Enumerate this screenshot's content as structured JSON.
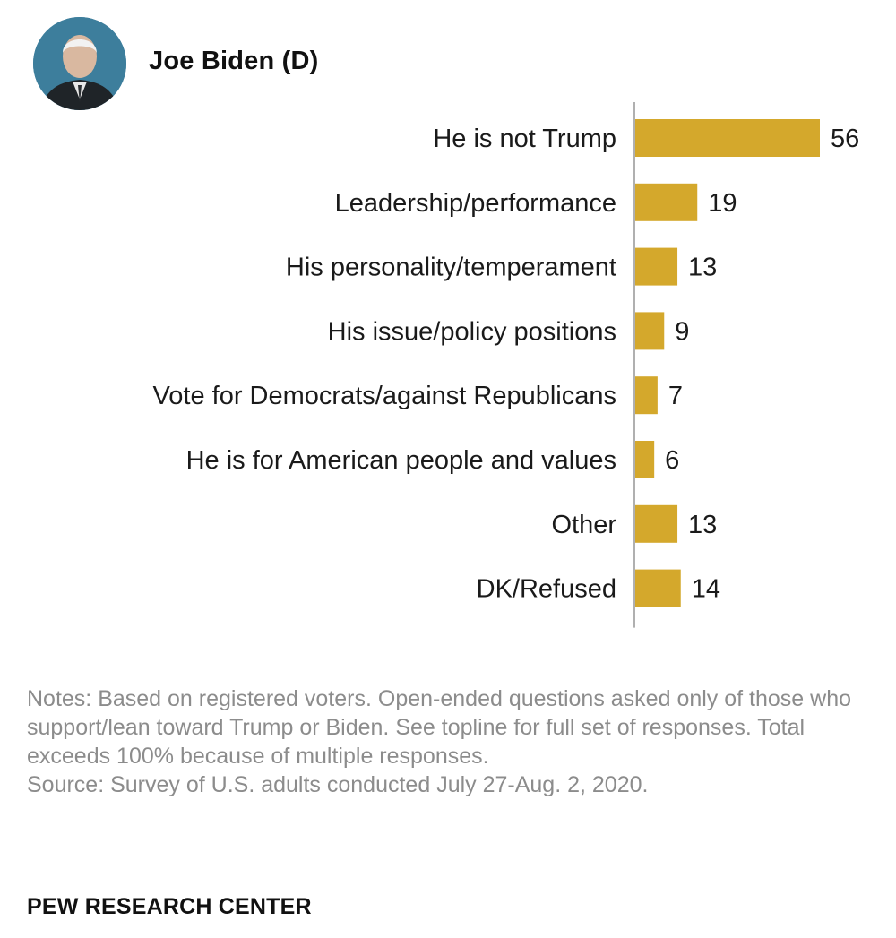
{
  "header": {
    "candidate_name": "Joe Biden (D)"
  },
  "colors": {
    "bar": "#d4a82c",
    "axis": "#b0b0b0",
    "avatar_background": "#3d7e9c"
  },
  "chart_data": {
    "type": "bar",
    "orientation": "horizontal",
    "categories": [
      "He is not Trump",
      "Leadership/performance",
      "His personality/temperament",
      "His issue/policy positions",
      "Vote for Democrats/against Republicans",
      "He is for American people and values",
      "Other",
      "DK/Refused"
    ],
    "values": [
      56,
      19,
      13,
      9,
      7,
      6,
      13,
      14
    ],
    "title": "",
    "xlabel": "",
    "ylabel": "",
    "xlim": [
      0,
      56
    ],
    "grid": false,
    "legend": "none",
    "data_labels": true
  },
  "footer": {
    "notes": "Notes: Based on registered voters. Open-ended questions asked only of those who support/lean toward Trump or Biden. See topline for full set of responses. Total exceeds 100% because of multiple responses.",
    "source": "Source: Survey of U.S. adults conducted July 27-Aug. 2, 2020.",
    "brand": "PEW RESEARCH CENTER"
  }
}
